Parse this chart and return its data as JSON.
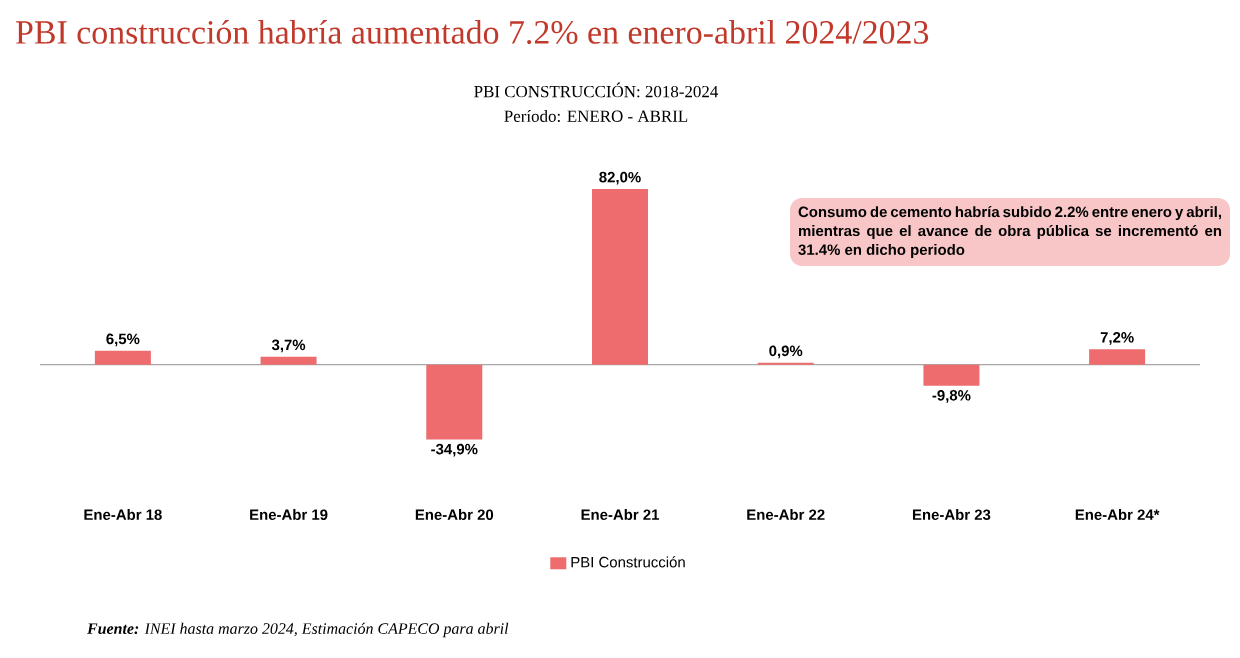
{
  "chart_data": {
    "type": "bar",
    "title": "PBI construcción habría aumentado 7.2% en enero-abril 2024/2023",
    "subtitle": "PBI CONSTRUCCIÓN: 2018-2024",
    "categories": [
      "Ene-Abr 18",
      "Ene-Abr 19",
      "Ene-Abr 20",
      "Ene-Abr 21",
      "Ene-Abr 22",
      "Ene-Abr 23",
      "Ene-Abr 24*"
    ],
    "series": [
      {
        "name": "PBI Construcción",
        "color": "#ee6b6e",
        "values": [
          6.5,
          3.7,
          -34.9,
          82.0,
          0.9,
          -9.8,
          7.2
        ],
        "value_labels": [
          "6,5%",
          "3,7%",
          "-34,9%",
          "82,0%",
          "0,9%",
          "-9,8%",
          "7,2%"
        ]
      }
    ],
    "tick_labels": "x",
    "legend": "bottom",
    "annotations": [
      "Período: ENERO - ABRIL",
      "Consumo de cemento habría subido 2.2% entre enero y abril, mientras que el avance de obra pública se incrementó en 31.4% en dicho periodo",
      "**Fuente:** INEI hasta marzo 2024, Estimación CAPECO para abril"
    ]
  }
}
